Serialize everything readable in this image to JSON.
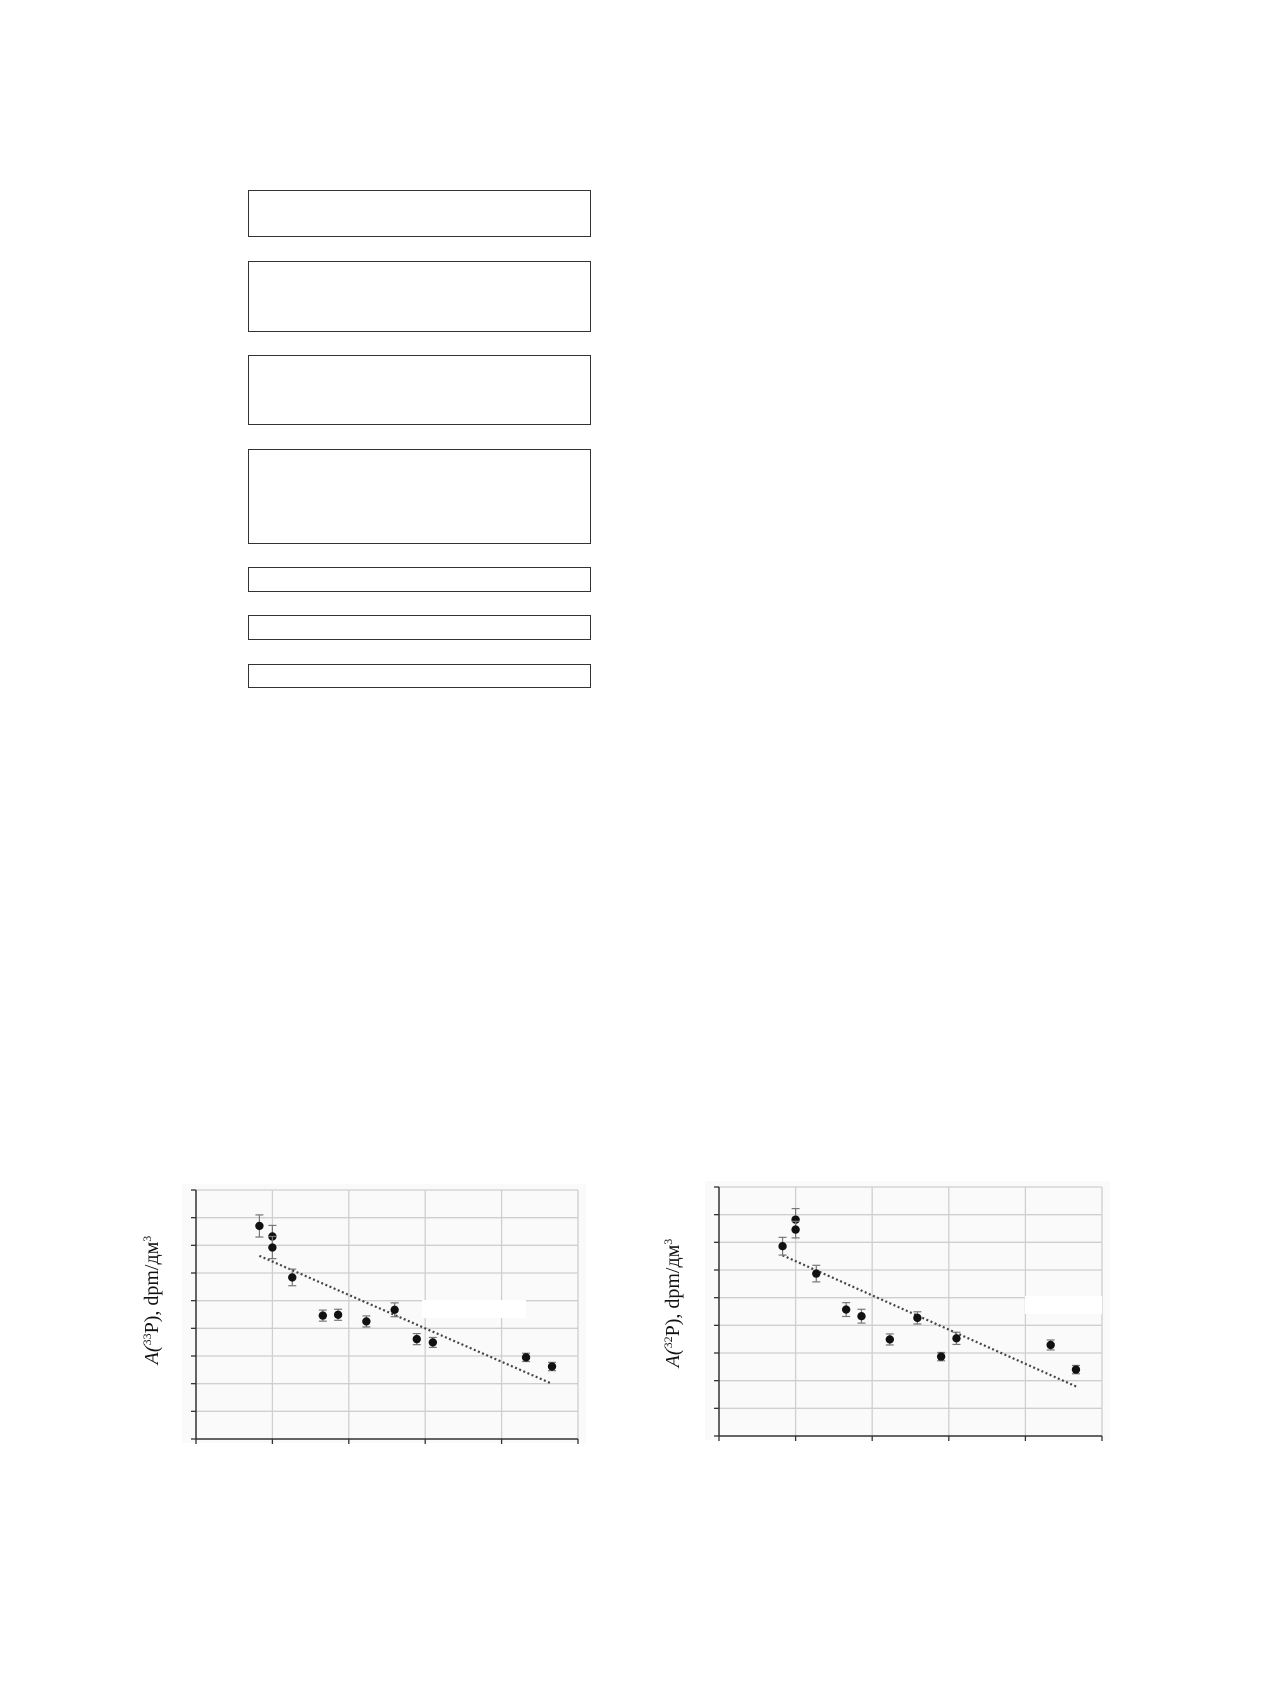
{
  "flowchart": {
    "boxes": [
      "",
      "",
      "",
      "",
      "",
      "",
      ""
    ]
  },
  "chart_data": [
    {
      "type": "scatter",
      "title": "",
      "xlabel": "",
      "ylabel_prefix": "A(",
      "ylabel_sup": "33",
      "ylabel_mid": "P), dpm/дм",
      "ylabel_sup2": "3",
      "xlim": [
        0,
        5
      ],
      "ylim": [
        0,
        9
      ],
      "grid": true,
      "series": [
        {
          "points": [
            {
              "x": 0.83,
              "y": 7.7,
              "err": 0.4
            },
            {
              "x": 1.0,
              "y": 7.32,
              "err": 0.4
            },
            {
              "x": 1.0,
              "y": 6.92,
              "err": 0.4
            },
            {
              "x": 1.26,
              "y": 5.84,
              "err": 0.3
            },
            {
              "x": 1.66,
              "y": 4.46,
              "err": 0.2
            },
            {
              "x": 1.86,
              "y": 4.49,
              "err": 0.2
            },
            {
              "x": 2.23,
              "y": 4.25,
              "err": 0.2
            },
            {
              "x": 2.6,
              "y": 4.67,
              "err": 0.25
            },
            {
              "x": 2.89,
              "y": 3.61,
              "err": 0.2
            },
            {
              "x": 3.1,
              "y": 3.49,
              "err": 0.18
            },
            {
              "x": 4.32,
              "y": 2.95,
              "err": 0.15
            },
            {
              "x": 4.66,
              "y": 2.62,
              "err": 0.15
            }
          ],
          "trendline": {
            "style": "dotted",
            "from": {
              "x": 0.83,
              "y": 6.62
            },
            "to": {
              "x": 4.64,
              "y": 2.02
            }
          }
        }
      ]
    },
    {
      "type": "scatter",
      "title": "",
      "xlabel": "",
      "ylabel_prefix": "A(",
      "ylabel_sup": "32",
      "ylabel_mid": "P), dpm/дм",
      "ylabel_sup2": "3",
      "xlim": [
        0,
        5
      ],
      "ylim": [
        0,
        9
      ],
      "grid": true,
      "series": [
        {
          "points": [
            {
              "x": 0.83,
              "y": 6.86,
              "err": 0.32
            },
            {
              "x": 1.0,
              "y": 7.82,
              "err": 0.4
            },
            {
              "x": 1.0,
              "y": 7.46,
              "err": 0.3
            },
            {
              "x": 1.27,
              "y": 5.87,
              "err": 0.3
            },
            {
              "x": 1.66,
              "y": 4.57,
              "err": 0.25
            },
            {
              "x": 1.86,
              "y": 4.33,
              "err": 0.25
            },
            {
              "x": 2.23,
              "y": 3.49,
              "err": 0.2
            },
            {
              "x": 2.59,
              "y": 4.27,
              "err": 0.22
            },
            {
              "x": 2.9,
              "y": 2.87,
              "err": 0.15
            },
            {
              "x": 3.1,
              "y": 3.53,
              "err": 0.22
            },
            {
              "x": 4.33,
              "y": 3.29,
              "err": 0.18
            },
            {
              "x": 4.66,
              "y": 2.4,
              "err": 0.15
            }
          ],
          "trendline": {
            "style": "dotted",
            "from": {
              "x": 0.83,
              "y": 6.53
            },
            "to": {
              "x": 4.67,
              "y": 1.78
            }
          }
        }
      ]
    }
  ]
}
